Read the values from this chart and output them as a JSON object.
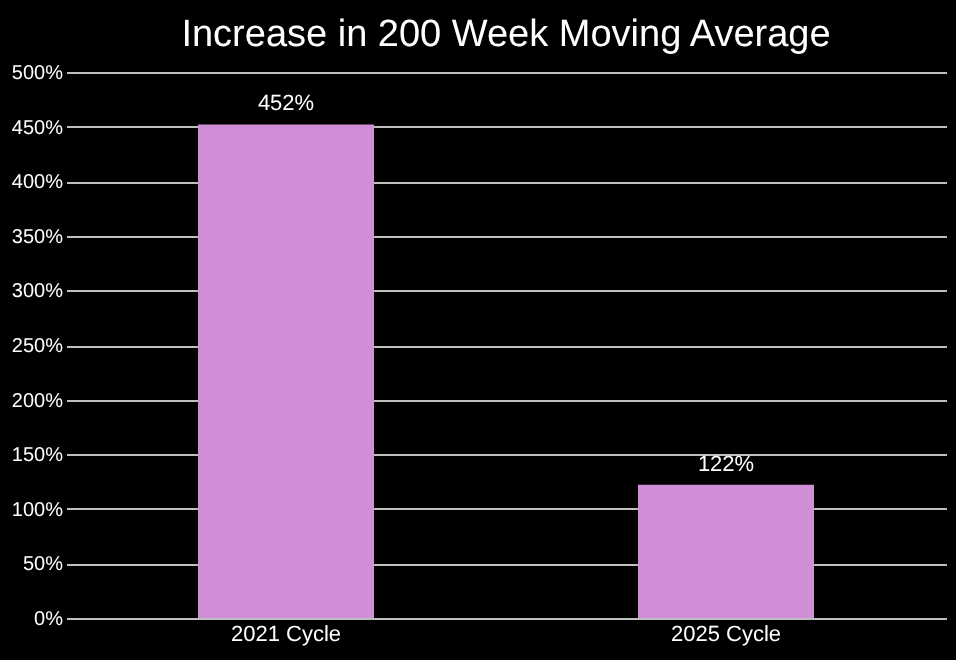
{
  "chart_data": {
    "type": "bar",
    "title": "Increase in 200 Week Moving Average",
    "categories": [
      "2021 Cycle",
      "2025 Cycle"
    ],
    "values": [
      452,
      122
    ],
    "color": "#cf8ed6",
    "value_labels": [
      "452%",
      "122%"
    ],
    "ylim": [
      0,
      500
    ],
    "yticks": [
      {
        "value": 0,
        "label": "0%"
      },
      {
        "value": 50,
        "label": "50%"
      },
      {
        "value": 100,
        "label": "100%"
      },
      {
        "value": 150,
        "label": "150%"
      },
      {
        "value": 200,
        "label": "200%"
      },
      {
        "value": 250,
        "label": "250%"
      },
      {
        "value": 300,
        "label": "300%"
      },
      {
        "value": 350,
        "label": "350%"
      },
      {
        "value": 400,
        "label": "400%"
      },
      {
        "value": 450,
        "label": "450%"
      },
      {
        "value": 500,
        "label": "500%"
      }
    ],
    "grid": "y"
  }
}
